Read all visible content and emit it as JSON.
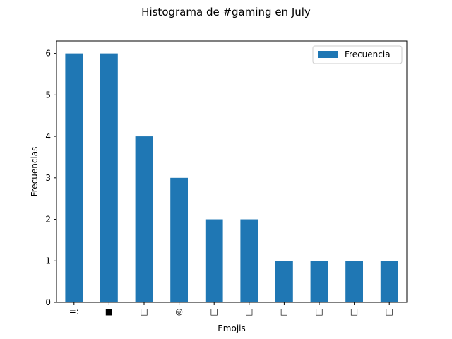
{
  "chart_data": {
    "type": "bar",
    "title": "Histograma de #gaming en July",
    "xlabel": "Emojis",
    "ylabel": "Frecuencias",
    "categories": [
      "=:",
      "■",
      "□",
      "◎",
      "□",
      "□",
      "□",
      "□",
      "□",
      "□"
    ],
    "series": [
      {
        "name": "Frecuencia",
        "values": [
          6,
          6,
          4,
          3,
          2,
          2,
          1,
          1,
          1,
          1
        ],
        "color": "#1f77b4"
      }
    ],
    "ylim": [
      0,
      6.3
    ],
    "yticks": [
      0,
      1,
      2,
      3,
      4,
      5,
      6
    ],
    "grid": false,
    "legend_position": "top-right"
  }
}
